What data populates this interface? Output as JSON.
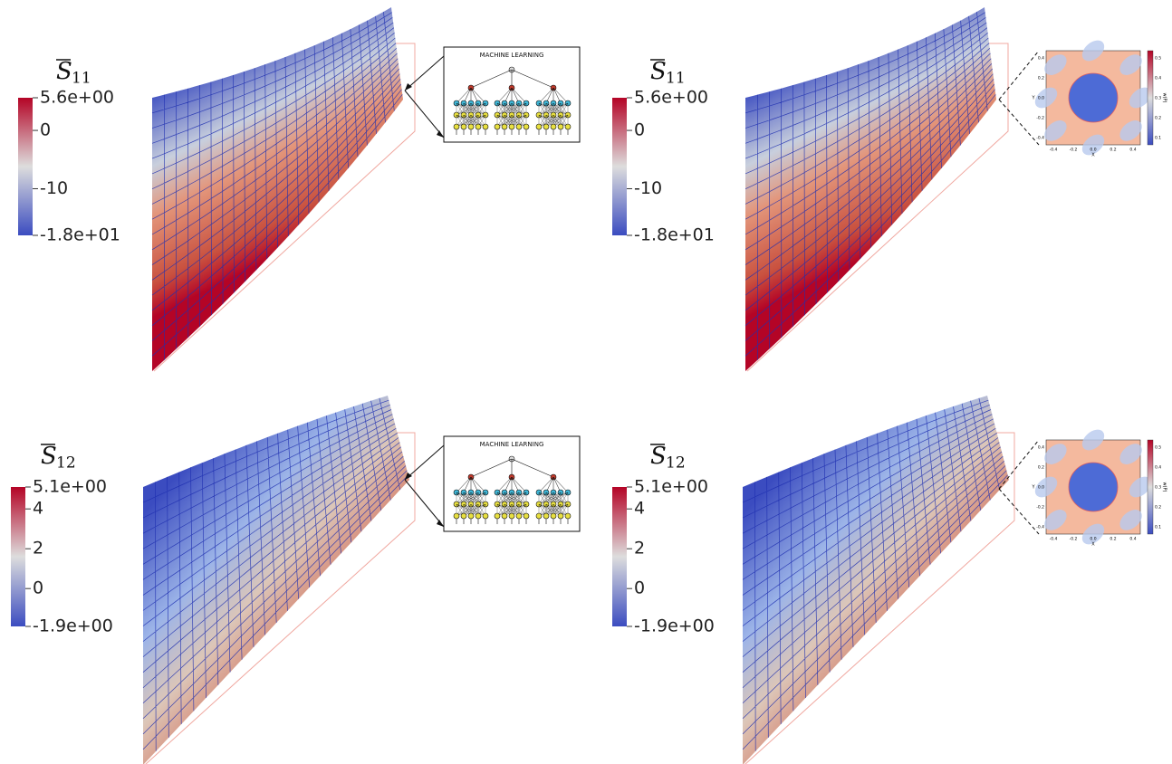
{
  "panels": [
    {
      "label": {
        "symbol": "S",
        "subscript": "11"
      },
      "colorbar": {
        "ticks": [
          "5.6e+00",
          "0",
          "-10",
          "-1.8e+01"
        ]
      },
      "inset": {
        "title": "MACHINE LEARNING"
      }
    },
    {
      "label": {
        "symbol": "S",
        "subscript": "11"
      },
      "colorbar": {
        "ticks": [
          "5.6e+00",
          "0",
          "-10",
          "-1.8e+01"
        ]
      },
      "inset": {
        "x_label": "X",
        "y_label": "Y",
        "colorbar_label": "w(P)",
        "x_ticks": [
          "-0.4",
          "-0.2",
          "0.0",
          "0.2",
          "0.4"
        ],
        "y_ticks": [
          "0.4",
          "0.2",
          "0.0",
          "-0.2",
          "-0.4"
        ],
        "colorbar_ticks": [
          "0.5",
          "0.4",
          "0.3",
          "0.2",
          "0.1"
        ]
      }
    },
    {
      "label": {
        "symbol": "S",
        "subscript": "12"
      },
      "colorbar": {
        "ticks": [
          "5.1e+00",
          "4",
          "2",
          "0",
          "-1.9e+00"
        ]
      },
      "inset": {
        "title": "MACHINE LEARNING"
      }
    },
    {
      "label": {
        "symbol": "S",
        "subscript": "12"
      },
      "colorbar": {
        "ticks": [
          "5.1e+00",
          "4",
          "2",
          "0",
          "-1.9e+00"
        ]
      },
      "inset": {
        "x_label": "X",
        "y_label": "Y",
        "colorbar_label": "w(P)",
        "x_ticks": [
          "-0.4",
          "-0.2",
          "0.0",
          "0.2",
          "0.4"
        ],
        "y_ticks": [
          "0.4",
          "0.2",
          "0.0",
          "-0.2",
          "-0.4"
        ],
        "colorbar_ticks": [
          "0.5",
          "0.4",
          "0.3",
          "0.2",
          "0.1"
        ]
      }
    }
  ]
}
